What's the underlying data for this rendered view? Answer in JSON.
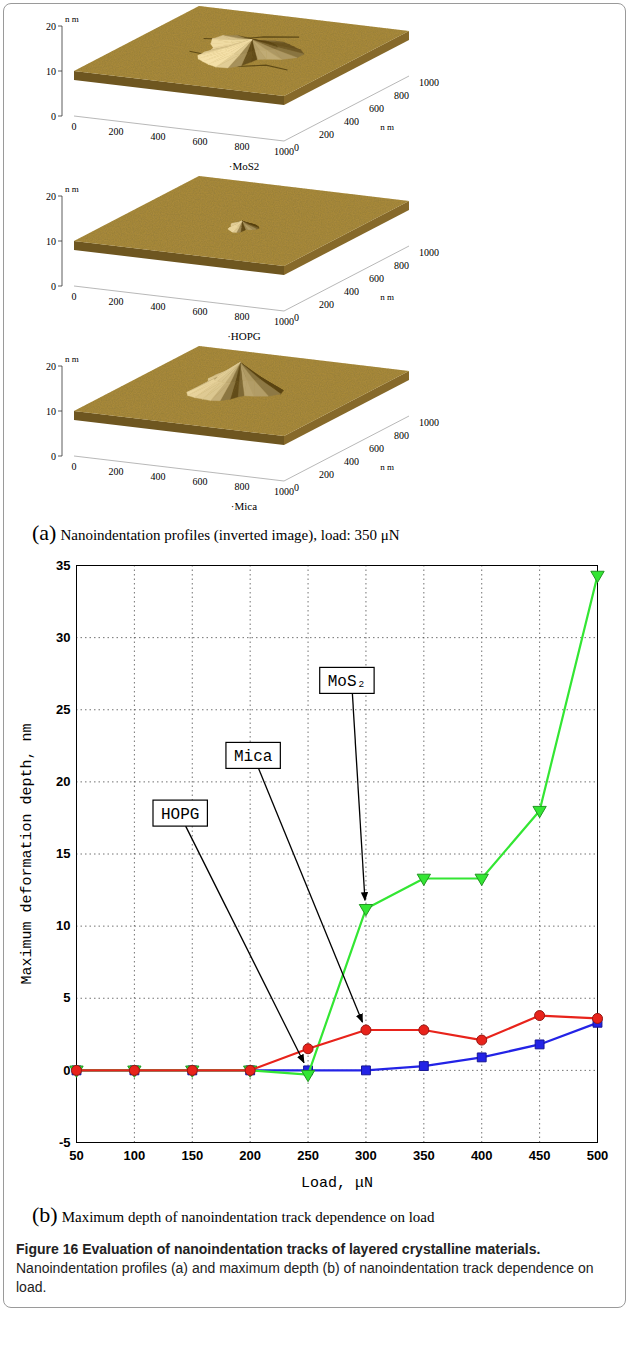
{
  "chart_data": [
    {
      "type": "surface",
      "title": "·MoS2",
      "xlim": [
        0,
        1000
      ],
      "xticks": [
        0,
        200,
        400,
        600,
        800,
        1000
      ],
      "ylim": [
        0,
        1000
      ],
      "yticks": [
        0,
        200,
        400,
        600,
        800,
        1000
      ],
      "ylabel": "n m",
      "zlim": [
        0,
        20
      ],
      "zticks": [
        0,
        10,
        20
      ],
      "zlabel": "n m"
    },
    {
      "type": "surface",
      "title": "·HOPG",
      "xlim": [
        0,
        1000
      ],
      "xticks": [
        0,
        200,
        400,
        600,
        800,
        1000
      ],
      "ylim": [
        0,
        1000
      ],
      "yticks": [
        0,
        200,
        400,
        600,
        800,
        1000
      ],
      "ylabel": "n m",
      "zlim": [
        0,
        20
      ],
      "zticks": [
        0,
        10,
        20
      ],
      "zlabel": "n m"
    },
    {
      "type": "surface",
      "title": "·Mica",
      "xlim": [
        0,
        1000
      ],
      "xticks": [
        0,
        200,
        400,
        600,
        800,
        1000
      ],
      "ylim": [
        0,
        1000
      ],
      "yticks": [
        0,
        200,
        400,
        600,
        800,
        1000
      ],
      "ylabel": "n m",
      "zlim": [
        0,
        20
      ],
      "zticks": [
        0,
        10,
        20
      ],
      "zlabel": "n m"
    },
    {
      "type": "line",
      "xlabel": "Load, μN",
      "ylabel": "Maximum deformation depth, nm",
      "x": [
        50,
        100,
        150,
        200,
        250,
        300,
        350,
        400,
        450,
        500
      ],
      "xlim": [
        50,
        500
      ],
      "xticks": [
        50,
        100,
        150,
        200,
        250,
        300,
        350,
        400,
        450,
        500
      ],
      "ylim": [
        -5,
        35
      ],
      "yticks": [
        -5,
        0,
        5,
        10,
        15,
        20,
        25,
        30,
        35
      ],
      "grid": true,
      "series": [
        {
          "name": "MoS₂",
          "color": "#33e633",
          "marker": "triangle-down",
          "values": [
            0,
            0,
            0,
            0,
            -0.3,
            11.2,
            13.3,
            13.3,
            18,
            34.3
          ]
        },
        {
          "name": "Mica",
          "color": "#e8231b",
          "marker": "circle",
          "values": [
            0,
            0,
            0,
            0,
            1.5,
            2.8,
            2.8,
            2.1,
            3.8,
            3.6
          ]
        },
        {
          "name": "HOPG",
          "color": "#2323e6",
          "marker": "square",
          "values": [
            0,
            0,
            0,
            0,
            0,
            0,
            0.3,
            0.9,
            1.8,
            3.3
          ]
        }
      ]
    }
  ],
  "captions": [
    {
      "panel": "(a)",
      "text": "Nanoindentation profiles (inverted image), load: 350 μN"
    },
    {
      "panel": "(b)",
      "text": "Maximum depth of nanoindentation track dependence on load"
    }
  ],
  "figure": {
    "label": "Figure 16",
    "title": "Evaluation of nanoindentation tracks of layered crystalline materials.",
    "text": "Nanoindentation profiles (a) and maximum depth (b) of nanoindentation track dependence on load."
  }
}
